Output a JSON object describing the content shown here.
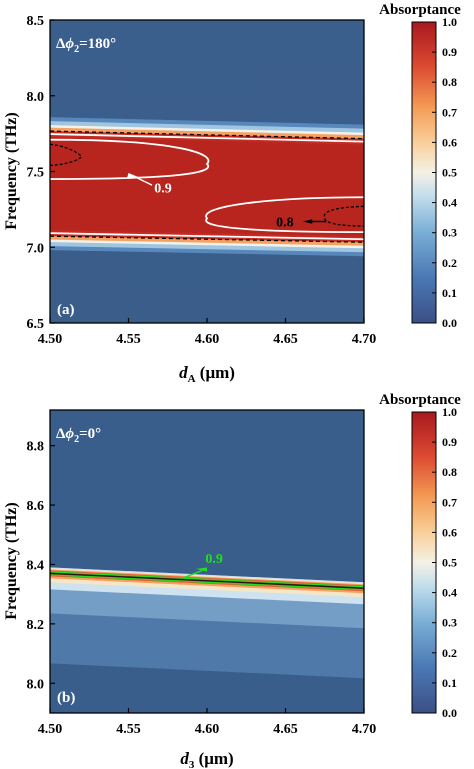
{
  "chart_data": [
    {
      "panel_label": "(a)",
      "type": "heatmap",
      "annotation": "Δϕ₂=180°",
      "annotation_parts": {
        "delta": "Δ",
        "phi": "ϕ",
        "sub": "2",
        "rest": "=180°"
      },
      "xlabel": "d_A (μm)",
      "xlabel_parts": {
        "var": "d",
        "sub": "A",
        "unit": " (μm)"
      },
      "ylabel": "Frequency (THz)",
      "xlim": [
        4.5,
        4.7
      ],
      "ylim": [
        6.5,
        8.5
      ],
      "xticks": [
        "4.50",
        "4.55",
        "4.60",
        "4.65",
        "4.70"
      ],
      "yticks": [
        "6.5",
        "7.0",
        "7.5",
        "8.0",
        "8.5"
      ],
      "absorption_band": {
        "upper_edge": {
          "x": [
            4.5,
            4.7
          ],
          "y": [
            7.78,
            7.73
          ]
        },
        "lower_edge": {
          "x": [
            4.5,
            4.7
          ],
          "y": [
            7.06,
            7.02
          ]
        }
      },
      "contours": [
        {
          "level": 0.9,
          "label": "0.9",
          "color": "#ffffff"
        },
        {
          "level": 0.8,
          "label": "0.8",
          "color": "#000000",
          "style": "dashed"
        }
      ],
      "colorbar": {
        "title": "Absorptance",
        "range": [
          0.0,
          1.0
        ],
        "ticks": [
          "0.0",
          "0.1",
          "0.2",
          "0.3",
          "0.4",
          "0.5",
          "0.6",
          "0.7",
          "0.8",
          "0.9",
          "1.0"
        ]
      }
    },
    {
      "panel_label": "(b)",
      "type": "heatmap",
      "annotation": "Δϕ₂=0°",
      "annotation_parts": {
        "delta": "Δ",
        "phi": "ϕ",
        "sub": "2",
        "rest": "=0°"
      },
      "xlabel": "d_3 (μm)",
      "xlabel_parts": {
        "var": "d",
        "sub": "3",
        "unit": " (μm)"
      },
      "ylabel": "Frequency (THz)",
      "xlim": [
        4.5,
        4.7
      ],
      "ylim": [
        7.9,
        8.92
      ],
      "xticks": [
        "4.50",
        "4.55",
        "4.60",
        "4.65",
        "4.70"
      ],
      "yticks": [
        "8.0",
        "8.2",
        "8.4",
        "8.6",
        "8.8"
      ],
      "resonance_line": {
        "x": [
          4.5,
          4.7
        ],
        "y": [
          8.37,
          8.32
        ]
      },
      "contours": [
        {
          "level": 0.9,
          "label": "0.9",
          "color": "#22dd22"
        }
      ],
      "colorbar": {
        "title": "Absorptance",
        "range": [
          0.0,
          1.0
        ],
        "ticks": [
          "0.0",
          "0.1",
          "0.2",
          "0.3",
          "0.4",
          "0.5",
          "0.6",
          "0.7",
          "0.8",
          "0.9",
          "1.0"
        ]
      }
    }
  ],
  "colors": {
    "background": "#3a5f8c",
    "band": "#c42b22",
    "band_inner": "#b3241c",
    "edge_white": "#f4f1ea",
    "edge_lightblue": "#9fc6e0",
    "edge_orange": "#f4a261",
    "contour_white": "#ffffff",
    "contour_black": "#000000",
    "contour_green": "#22dd22"
  }
}
